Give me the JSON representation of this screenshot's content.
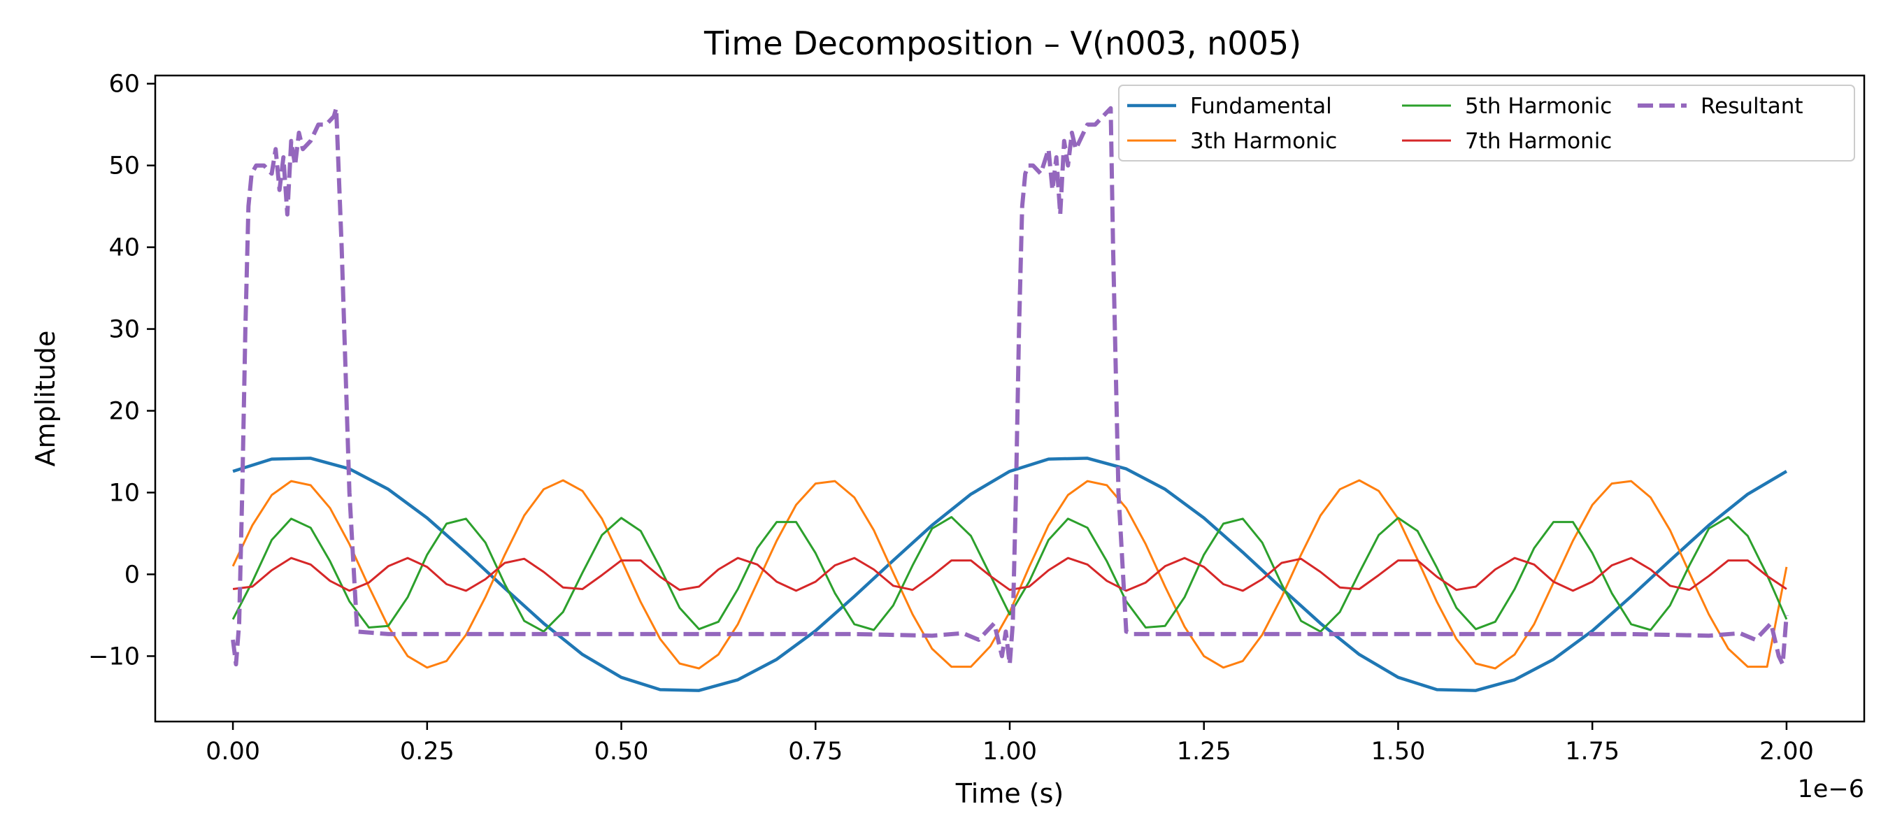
{
  "chart_data": {
    "type": "line",
    "title": "Time Decomposition – V(n003, n005)",
    "xlabel": "Time (s)",
    "ylabel": "Amplitude",
    "x_offset_label": "1e−6",
    "xlim": [
      -0.1,
      2.1
    ],
    "ylim": [
      -18,
      61
    ],
    "x_ticks": [
      0.0,
      0.25,
      0.5,
      0.75,
      1.0,
      1.25,
      1.5,
      1.75,
      2.0
    ],
    "x_tick_labels": [
      "0.00",
      "0.25",
      "0.50",
      "0.75",
      "1.00",
      "1.25",
      "1.50",
      "1.75",
      "2.00"
    ],
    "y_ticks": [
      -10,
      0,
      10,
      20,
      30,
      40,
      50,
      60
    ],
    "y_tick_labels": [
      "−10",
      "0",
      "10",
      "20",
      "30",
      "40",
      "50",
      "60"
    ],
    "grid": false,
    "legend": {
      "placement": "top-right",
      "columns": 3
    },
    "series": [
      {
        "name": "Fundamental",
        "color": "#1f77b4",
        "style": "solid",
        "x": [
          0.0,
          0.05,
          0.1,
          0.15,
          0.2,
          0.25,
          0.3,
          0.35,
          0.4,
          0.45,
          0.5,
          0.55,
          0.6,
          0.65,
          0.7,
          0.75,
          0.8,
          0.85,
          0.9,
          0.95,
          1.0,
          1.05,
          1.1,
          1.15,
          1.2,
          1.25,
          1.3,
          1.35,
          1.4,
          1.45,
          1.5,
          1.55,
          1.6,
          1.65,
          1.7,
          1.75,
          1.8,
          1.85,
          1.9,
          1.95,
          2.0
        ],
        "y": [
          12.6,
          14.1,
          14.2,
          12.9,
          10.4,
          6.9,
          2.7,
          -1.7,
          -6.0,
          -9.8,
          -12.6,
          -14.1,
          -14.2,
          -12.9,
          -10.4,
          -6.9,
          -2.7,
          1.7,
          6.0,
          9.8,
          12.6,
          14.1,
          14.2,
          12.9,
          10.4,
          6.9,
          2.7,
          -1.7,
          -6.0,
          -9.8,
          -12.6,
          -14.1,
          -14.2,
          -12.9,
          -10.4,
          -6.9,
          -2.7,
          1.7,
          6.0,
          9.8,
          12.6
        ]
      },
      {
        "name": "3th Harmonic",
        "color": "#ff7f0e",
        "style": "solid",
        "x": [
          0.0,
          0.025,
          0.05,
          0.075,
          0.1,
          0.125,
          0.15,
          0.175,
          0.2,
          0.225,
          0.25,
          0.275,
          0.3,
          0.325,
          0.35,
          0.375,
          0.4,
          0.425,
          0.45,
          0.475,
          0.5,
          0.525,
          0.55,
          0.575,
          0.6,
          0.625,
          0.65,
          0.675,
          0.7,
          0.725,
          0.75,
          0.775,
          0.8,
          0.825,
          0.85,
          0.875,
          0.9,
          0.925,
          0.95,
          0.975,
          1.0,
          1.025,
          1.05,
          1.075,
          1.1,
          1.125,
          1.15,
          1.175,
          1.2,
          1.225,
          1.25,
          1.275,
          1.3,
          1.325,
          1.35,
          1.375,
          1.4,
          1.425,
          1.45,
          1.475,
          1.5,
          1.525,
          1.55,
          1.575,
          1.6,
          1.625,
          1.65,
          1.675,
          1.7,
          1.725,
          1.75,
          1.775,
          1.8,
          1.825,
          1.85,
          1.875,
          1.9,
          1.925,
          1.95,
          1.975,
          2.0
        ],
        "y": [
          1.0,
          6.0,
          9.7,
          11.4,
          10.9,
          8.1,
          3.7,
          -1.5,
          -6.4,
          -10.0,
          -11.4,
          -10.6,
          -7.4,
          -2.8,
          2.4,
          7.2,
          10.4,
          11.5,
          10.2,
          6.8,
          1.8,
          -3.4,
          -7.9,
          -10.9,
          -11.5,
          -9.8,
          -6.1,
          -1.0,
          4.1,
          8.5,
          11.1,
          11.4,
          9.4,
          5.4,
          0.2,
          -4.9,
          -9.1,
          -11.3,
          -11.3,
          -8.8,
          -4.6,
          0.9,
          6.0,
          9.7,
          11.4,
          10.9,
          8.1,
          3.7,
          -1.5,
          -6.4,
          -10.0,
          -11.4,
          -10.6,
          -7.4,
          -2.8,
          2.4,
          7.2,
          10.4,
          11.5,
          10.2,
          6.8,
          1.8,
          -3.4,
          -7.9,
          -10.9,
          -11.5,
          -9.8,
          -6.1,
          -1.0,
          4.1,
          8.5,
          11.1,
          11.4,
          9.4,
          5.4,
          0.2,
          -4.9,
          -9.1,
          -11.3,
          -11.3,
          0.9
        ]
      },
      {
        "name": "5th Harmonic",
        "color": "#2ca02c",
        "style": "solid",
        "x": [
          0.0,
          0.025,
          0.05,
          0.075,
          0.1,
          0.125,
          0.15,
          0.175,
          0.2,
          0.225,
          0.25,
          0.275,
          0.3,
          0.325,
          0.35,
          0.375,
          0.4,
          0.425,
          0.45,
          0.475,
          0.5,
          0.525,
          0.55,
          0.575,
          0.6,
          0.625,
          0.65,
          0.675,
          0.7,
          0.725,
          0.75,
          0.775,
          0.8,
          0.825,
          0.85,
          0.875,
          0.9,
          0.925,
          0.95,
          0.975,
          1.0,
          1.025,
          1.05,
          1.075,
          1.1,
          1.125,
          1.15,
          1.175,
          1.2,
          1.225,
          1.25,
          1.275,
          1.3,
          1.325,
          1.35,
          1.375,
          1.4,
          1.425,
          1.45,
          1.475,
          1.5,
          1.525,
          1.55,
          1.575,
          1.6,
          1.625,
          1.65,
          1.675,
          1.7,
          1.725,
          1.75,
          1.775,
          1.8,
          1.825,
          1.85,
          1.875,
          1.9,
          1.925,
          1.95,
          1.975,
          2.0
        ],
        "y": [
          -5.5,
          -0.9,
          4.2,
          6.8,
          5.7,
          1.6,
          -3.3,
          -6.5,
          -6.3,
          -2.8,
          2.4,
          6.2,
          6.8,
          3.9,
          -1.2,
          -5.7,
          -7.0,
          -4.6,
          0.2,
          4.8,
          6.9,
          5.3,
          0.8,
          -4.1,
          -6.7,
          -5.8,
          -1.8,
          3.2,
          6.4,
          6.4,
          2.6,
          -2.3,
          -6.1,
          -6.8,
          -3.8,
          1.1,
          5.6,
          7.0,
          4.7,
          -0.1,
          -4.9,
          -0.9,
          4.2,
          6.8,
          5.7,
          1.6,
          -3.3,
          -6.5,
          -6.3,
          -2.8,
          2.4,
          6.2,
          6.8,
          3.9,
          -1.2,
          -5.7,
          -7.0,
          -4.6,
          0.2,
          4.8,
          6.9,
          5.3,
          0.8,
          -4.1,
          -6.7,
          -5.8,
          -1.8,
          3.2,
          6.4,
          6.4,
          2.6,
          -2.3,
          -6.1,
          -6.8,
          -3.8,
          1.1,
          5.6,
          7.0,
          4.7,
          -0.1,
          -5.5
        ]
      },
      {
        "name": "7th Harmonic",
        "color": "#d62728",
        "style": "solid",
        "x": [
          0.0,
          0.025,
          0.05,
          0.075,
          0.1,
          0.125,
          0.15,
          0.175,
          0.2,
          0.225,
          0.25,
          0.275,
          0.3,
          0.325,
          0.35,
          0.375,
          0.4,
          0.425,
          0.45,
          0.475,
          0.5,
          0.525,
          0.55,
          0.575,
          0.6,
          0.625,
          0.65,
          0.675,
          0.7,
          0.725,
          0.75,
          0.775,
          0.8,
          0.825,
          0.85,
          0.875,
          0.9,
          0.925,
          0.95,
          0.975,
          1.0,
          1.025,
          1.05,
          1.075,
          1.1,
          1.125,
          1.15,
          1.175,
          1.2,
          1.225,
          1.25,
          1.275,
          1.3,
          1.325,
          1.35,
          1.375,
          1.4,
          1.425,
          1.45,
          1.475,
          1.5,
          1.525,
          1.55,
          1.575,
          1.6,
          1.625,
          1.65,
          1.675,
          1.7,
          1.725,
          1.75,
          1.775,
          1.8,
          1.825,
          1.85,
          1.875,
          1.9,
          1.925,
          1.95,
          1.975,
          2.0
        ],
        "y": [
          -1.8,
          -1.5,
          0.5,
          2.0,
          1.2,
          -0.8,
          -2.0,
          -1.0,
          1.0,
          2.0,
          0.9,
          -1.2,
          -2.0,
          -0.6,
          1.4,
          1.9,
          0.3,
          -1.6,
          -1.8,
          -0.1,
          1.7,
          1.7,
          -0.3,
          -1.9,
          -1.5,
          0.6,
          2.0,
          1.2,
          -0.9,
          -2.0,
          -0.9,
          1.1,
          2.0,
          0.6,
          -1.4,
          -1.9,
          -0.2,
          1.7,
          1.7,
          -0.2,
          -1.9,
          -1.5,
          0.5,
          2.0,
          1.2,
          -0.8,
          -2.0,
          -1.0,
          1.0,
          2.0,
          0.9,
          -1.2,
          -2.0,
          -0.6,
          1.4,
          1.9,
          0.3,
          -1.6,
          -1.8,
          -0.1,
          1.7,
          1.7,
          -0.3,
          -1.9,
          -1.5,
          0.6,
          2.0,
          1.2,
          -0.9,
          -2.0,
          -0.9,
          1.1,
          2.0,
          0.6,
          -1.4,
          -1.9,
          -0.2,
          1.7,
          1.7,
          -0.2,
          -1.8
        ]
      },
      {
        "name": "Resultant",
        "color": "#9467bd",
        "style": "dashed",
        "x": [
          0.0,
          0.004,
          0.008,
          0.012,
          0.016,
          0.02,
          0.024,
          0.03,
          0.04,
          0.05,
          0.055,
          0.06,
          0.065,
          0.07,
          0.075,
          0.08,
          0.085,
          0.09,
          0.1,
          0.11,
          0.12,
          0.13,
          0.133,
          0.14,
          0.15,
          0.16,
          0.2,
          0.4,
          0.6,
          0.8,
          0.9,
          0.94,
          0.96,
          0.98,
          0.99,
          0.995,
          1.0,
          1.004,
          1.008,
          1.012,
          1.016,
          1.02,
          1.024,
          1.03,
          1.04,
          1.05,
          1.055,
          1.06,
          1.065,
          1.07,
          1.075,
          1.08,
          1.085,
          1.09,
          1.1,
          1.11,
          1.12,
          1.13,
          1.133,
          1.14,
          1.15,
          1.16,
          1.2,
          1.4,
          1.6,
          1.8,
          1.9,
          1.94,
          1.96,
          1.98,
          1.99,
          1.995,
          2.0
        ],
        "y": [
          -8.0,
          -11.0,
          -6.0,
          10.0,
          30.0,
          45.0,
          49.0,
          50.0,
          50.0,
          49.0,
          52.0,
          47.0,
          51.0,
          44.0,
          53.0,
          50.0,
          54.0,
          52.0,
          53.0,
          55.0,
          55.0,
          56.0,
          57.0,
          40.0,
          10.0,
          -7.0,
          -7.3,
          -7.3,
          -7.3,
          -7.3,
          -7.5,
          -7.2,
          -8.0,
          -6.0,
          -10.0,
          -7.0,
          -11.0,
          -6.0,
          10.0,
          30.0,
          45.0,
          49.0,
          50.0,
          50.0,
          49.0,
          52.0,
          47.0,
          51.0,
          44.0,
          53.0,
          50.0,
          54.0,
          52.0,
          53.0,
          55.0,
          55.0,
          56.0,
          57.0,
          40.0,
          10.0,
          -7.0,
          -7.3,
          -7.3,
          -7.3,
          -7.3,
          -7.3,
          -7.5,
          -7.2,
          -8.0,
          -6.0,
          -10.0,
          -11.0,
          -5.0
        ]
      }
    ]
  }
}
